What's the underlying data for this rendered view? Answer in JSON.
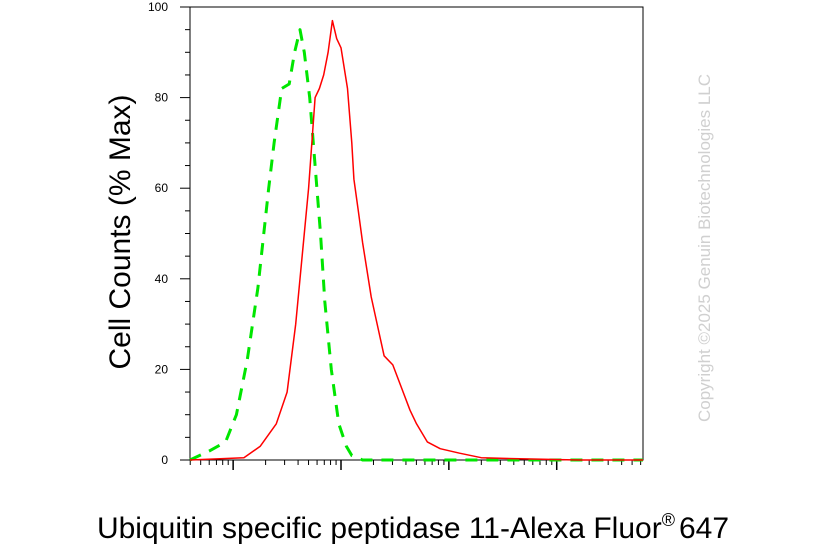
{
  "chart_data": {
    "type": "line",
    "title": "",
    "xlabel": {
      "main": "Ubiquitin specific peptidase 11-Alexa Fluor",
      "superscript": "®",
      "suffix": "647"
    },
    "ylabel": "Cell Counts (% Max)",
    "ylim": [
      0,
      100
    ],
    "yticks": [
      "0",
      "20",
      "40",
      "60",
      "80",
      "100"
    ],
    "xscale": "log",
    "xlim": [
      0.6,
      4.8
    ],
    "grid": false,
    "legend": "none",
    "watermark": "Copyright ©2025 Genuin Biotechnologies LLC",
    "series": [
      {
        "style": "dashed",
        "color": "#00e600",
        "x": [
          0.6,
          0.78,
          0.93,
          1.03,
          1.13,
          1.23,
          1.33,
          1.38,
          1.45,
          1.52,
          1.57,
          1.62,
          1.66,
          1.71,
          1.76,
          1.81,
          1.85,
          1.91,
          1.98,
          2.05,
          2.1,
          2.2,
          2.4,
          2.6,
          3.0,
          4.8
        ],
        "y": [
          0,
          2,
          4,
          10,
          22,
          38,
          60,
          70,
          82,
          83,
          90,
          95,
          90,
          80,
          65,
          50,
          35,
          20,
          8,
          3,
          1,
          0,
          0,
          0,
          0,
          0
        ]
      },
      {
        "style": "solid",
        "color": "#ff0000",
        "x": [
          0.6,
          1.1,
          1.25,
          1.4,
          1.5,
          1.58,
          1.62,
          1.7,
          1.76,
          1.8,
          1.84,
          1.88,
          1.92,
          1.96,
          2.0,
          2.06,
          2.1,
          2.12,
          2.16,
          2.2,
          2.28,
          2.4,
          2.48,
          2.56,
          2.64,
          2.7,
          2.8,
          2.92,
          3.1,
          3.3,
          3.6,
          4.2,
          4.8
        ],
        "y": [
          0,
          0.5,
          3,
          8,
          15,
          30,
          40,
          60,
          80,
          82,
          85,
          90,
          97,
          93,
          91,
          82,
          70,
          62,
          55,
          48,
          36,
          23,
          21,
          16,
          11,
          8,
          4,
          2.5,
          1.5,
          0.5,
          0.3,
          0,
          0
        ]
      }
    ]
  }
}
